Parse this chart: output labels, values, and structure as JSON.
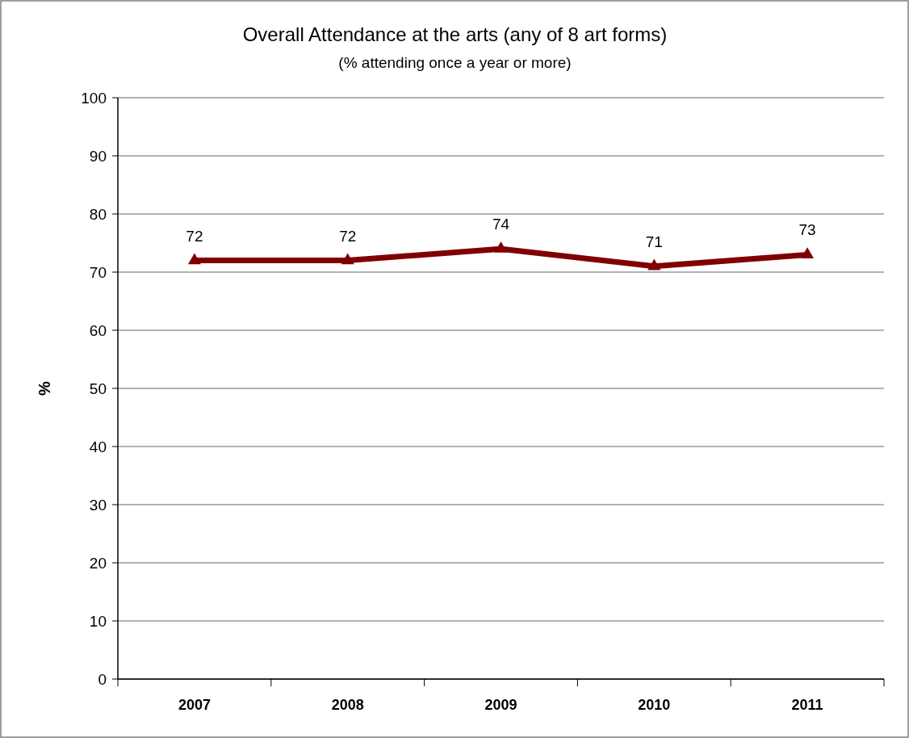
{
  "chart_data": {
    "type": "line",
    "title": "Overall Attendance at the arts (any of 8 art forms)",
    "subtitle": "(% attending once a year or more)",
    "ylabel": "%",
    "categories": [
      "2007",
      "2008",
      "2009",
      "2010",
      "2011"
    ],
    "series": [
      {
        "color": "#800000",
        "values": [
          72,
          72,
          74,
          71,
          73
        ]
      }
    ],
    "ylim": [
      0,
      100
    ],
    "yticks": [
      0,
      10,
      20,
      30,
      40,
      50,
      60,
      70,
      80,
      90,
      100
    ],
    "grid": "y",
    "marker": "triangle",
    "line_style": "solid",
    "data_labels": true
  }
}
